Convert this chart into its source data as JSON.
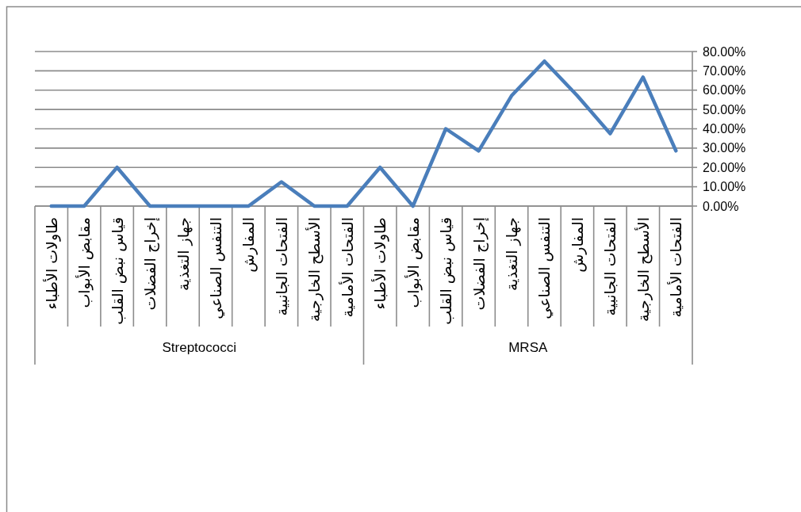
{
  "chart_data": {
    "type": "line",
    "categories": [
      "طاولات الأطباء",
      "مقابض الأبواب",
      "قياس نبض القلب",
      "إخراج الفضلات",
      "جهاز التغذية",
      "التنفس الصناعي",
      "المفارش",
      "الفتحات الجانبية",
      "الأسطح الخارجية",
      "الفتحات الأمامية",
      "طاولات الأطباء",
      "مقابض الأبواب",
      "قياس نبض القلب",
      "إخراج الفضلات",
      "جهاز التغذية",
      "التنفس الصناعي",
      "المفارش",
      "الفتحات الجانبية",
      "الأسطح الخارجية",
      "الفتحات الأمامية"
    ],
    "series": [
      {
        "color": "#4a7ebb",
        "values": [
          0,
          0,
          20,
          0,
          0,
          0,
          0,
          12.5,
          0,
          0,
          20,
          0,
          40,
          28.6,
          57.1,
          75,
          57.1,
          37.5,
          66.7,
          28.6
        ]
      }
    ],
    "ylim": [
      0,
      80
    ],
    "yticks": [
      {
        "value": 0,
        "label": "0.00%"
      },
      {
        "value": 10,
        "label": "10.00%"
      },
      {
        "value": 20,
        "label": "20.00%"
      },
      {
        "value": 30,
        "label": "30.00%"
      },
      {
        "value": 40,
        "label": "40.00%"
      },
      {
        "value": 50,
        "label": "50.00%"
      },
      {
        "value": 60,
        "label": "60.00%"
      },
      {
        "value": 70,
        "label": "70.00%"
      },
      {
        "value": 80,
        "label": "80.00%"
      }
    ],
    "grid": "y",
    "line_style": "solid",
    "annotations": [
      "Streptococci",
      "MRSA"
    ]
  }
}
